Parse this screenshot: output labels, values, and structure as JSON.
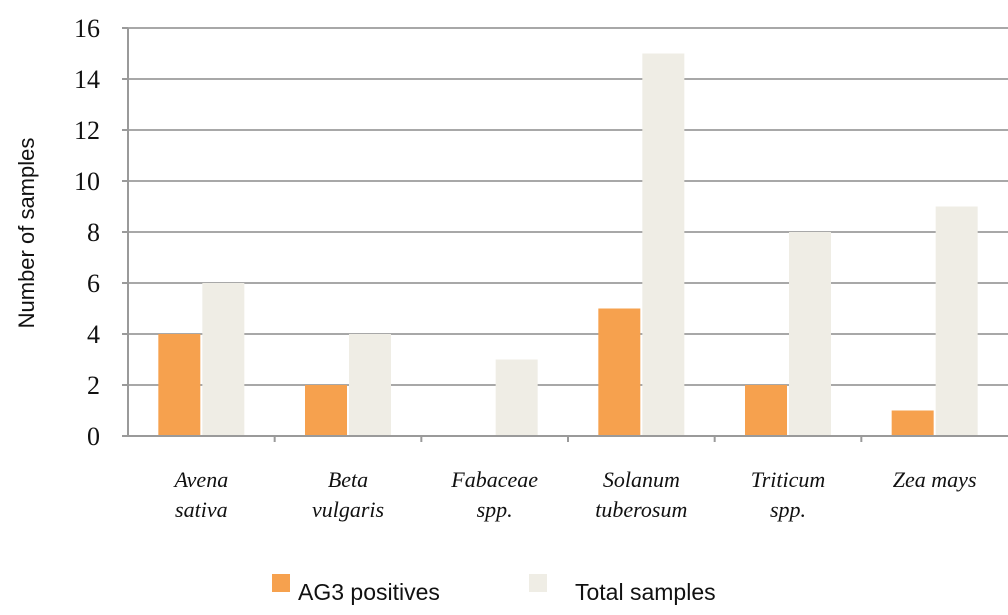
{
  "chart_data": {
    "type": "bar",
    "title": "",
    "xlabel": "",
    "ylabel": "Number of samples",
    "ylim": [
      0,
      16
    ],
    "yticks": [
      0,
      2,
      4,
      6,
      8,
      10,
      12,
      14,
      16
    ],
    "categories": [
      [
        "Avena",
        "sativa"
      ],
      [
        "Beta",
        "vulgaris"
      ],
      [
        "Fabaceae",
        "spp."
      ],
      [
        "Solanum",
        "tuberosum"
      ],
      [
        "Triticum",
        "spp."
      ],
      [
        "Zea mays"
      ]
    ],
    "series": [
      {
        "name": "AG3 positives",
        "values": [
          4,
          2,
          0,
          5,
          2,
          1
        ],
        "color": "#f6a14e"
      },
      {
        "name": "Total samples",
        "values": [
          6,
          4,
          3,
          15,
          8,
          9
        ],
        "color": "#efede5"
      }
    ],
    "grid": true,
    "legend_position": "bottom"
  }
}
